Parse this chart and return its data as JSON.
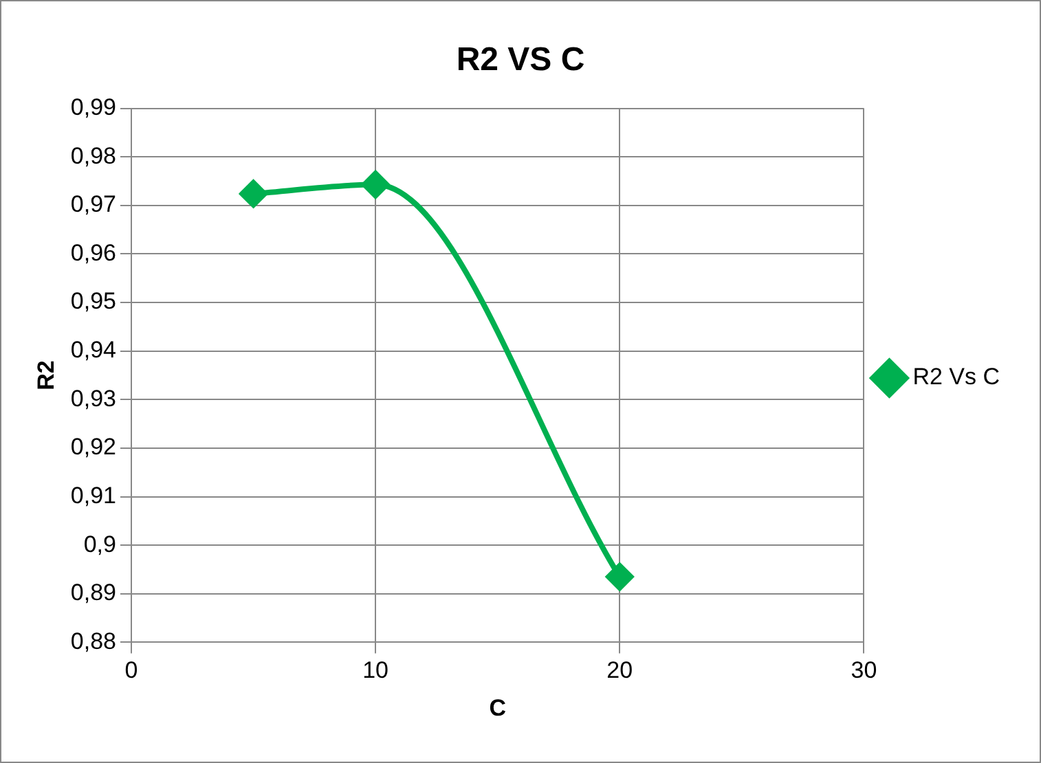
{
  "chart_data": {
    "type": "line",
    "title": "R2 VS C",
    "xlabel": "C",
    "ylabel": "R2",
    "x": [
      5,
      10,
      20
    ],
    "series": [
      {
        "name": "R2 Vs C",
        "color": "#00b050",
        "values": [
          0.9724,
          0.9743,
          0.8935
        ]
      }
    ],
    "xlim": [
      0,
      30
    ],
    "xticks": [
      0,
      10,
      20,
      30
    ],
    "ylim": [
      0.88,
      0.99
    ],
    "yticks": [
      {
        "value": 0.88,
        "label": "0,88"
      },
      {
        "value": 0.89,
        "label": "0,89"
      },
      {
        "value": 0.9,
        "label": "0,9"
      },
      {
        "value": 0.91,
        "label": "0,91"
      },
      {
        "value": 0.92,
        "label": "0,92"
      },
      {
        "value": 0.93,
        "label": "0,93"
      },
      {
        "value": 0.94,
        "label": "0,94"
      },
      {
        "value": 0.95,
        "label": "0,95"
      },
      {
        "value": 0.96,
        "label": "0,96"
      },
      {
        "value": 0.97,
        "label": "0,97"
      },
      {
        "value": 0.98,
        "label": "0,98"
      },
      {
        "value": 0.99,
        "label": "0,99"
      }
    ],
    "grid": true,
    "legend": "right",
    "marker": "diamond",
    "line_style": "solid"
  }
}
